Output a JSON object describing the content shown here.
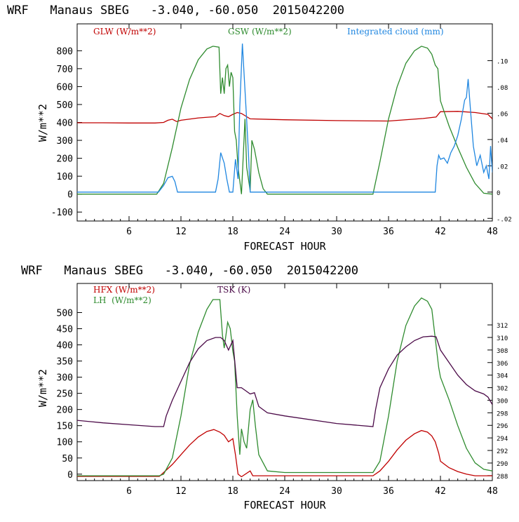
{
  "chart_data": [
    {
      "type": "line",
      "title": "WRF   Manaus SBEG   -3.040, -60.050  2015042200",
      "xlabel": "FORECAST HOUR",
      "ylabel": "W/m**2",
      "xlim": [
        0,
        48
      ],
      "ylim": [
        -150,
        950
      ],
      "xticks": [
        6,
        12,
        18,
        24,
        30,
        36,
        42,
        48
      ],
      "yticks": [
        -100,
        0,
        100,
        200,
        300,
        400,
        500,
        600,
        700,
        800
      ],
      "y2lim": [
        -0.022,
        0.128
      ],
      "y2ticks": [
        {
          "value": -0.02,
          "label": "-.02"
        },
        {
          "value": 0,
          "label": "0"
        },
        {
          "value": 0.02,
          "label": ".02"
        },
        {
          "value": 0.04,
          "label": ".04"
        },
        {
          "value": 0.06,
          "label": ".06"
        },
        {
          "value": 0.08,
          "label": ".08"
        },
        {
          "value": 0.1,
          "label": ".10"
        }
      ],
      "series": [
        {
          "name": "GLW (W/m**2)",
          "color": "#c00000",
          "axis": "left",
          "x": [
            0,
            3,
            6,
            9,
            10,
            10.5,
            11,
            11.5,
            12,
            14,
            16,
            16.5,
            17,
            17.5,
            18,
            18.5,
            19,
            20,
            24,
            30,
            36,
            40,
            41.5,
            42,
            44,
            46,
            47.5,
            48
          ],
          "y": [
            398,
            398,
            397,
            397,
            400,
            412,
            418,
            405,
            412,
            425,
            432,
            450,
            438,
            432,
            445,
            455,
            450,
            420,
            415,
            410,
            408,
            422,
            430,
            460,
            462,
            455,
            445,
            420
          ]
        },
        {
          "name": "GSW (W/m**2)",
          "color": "#2e8b2e",
          "axis": "left",
          "x": [
            0,
            9.2,
            10,
            11,
            12,
            13,
            14,
            15,
            15.7,
            16.4,
            16.6,
            16.8,
            17,
            17.2,
            17.4,
            17.6,
            17.8,
            18,
            18.2,
            18.4,
            18.6,
            19,
            19.4,
            19.6,
            20,
            20.2,
            20.5,
            21,
            21.5,
            22,
            34.2,
            35,
            36,
            37,
            38,
            39,
            39.8,
            40.5,
            41,
            41.4,
            41.7,
            42,
            43,
            44,
            45,
            46,
            47,
            48
          ],
          "y": [
            0,
            0,
            60,
            260,
            480,
            640,
            750,
            810,
            825,
            820,
            560,
            650,
            560,
            700,
            720,
            600,
            680,
            650,
            350,
            300,
            150,
            0,
            420,
            150,
            20,
            300,
            250,
            120,
            30,
            0,
            0,
            180,
            420,
            600,
            730,
            800,
            825,
            815,
            780,
            720,
            700,
            520,
            380,
            260,
            150,
            60,
            5,
            0
          ]
        },
        {
          "name": "Integrated cloud (mm)",
          "color": "#1f86e0",
          "axis": "right",
          "x": [
            0,
            9.4,
            10,
            10.5,
            11,
            11.3,
            11.6,
            16,
            16.3,
            16.6,
            17,
            17.3,
            17.6,
            18,
            18.3,
            18.6,
            18.8,
            19.1,
            19.3,
            19.6,
            19.8,
            20,
            34.2,
            41.4,
            41.6,
            41.8,
            42,
            42.4,
            42.8,
            43.2,
            43.6,
            44,
            44.4,
            44.8,
            45,
            45.2,
            45.5,
            45.8,
            46.2,
            46.6,
            47,
            47.3,
            47.6,
            47.8,
            48
          ],
          "y": [
            0,
            0,
            0.005,
            0.011,
            0.012,
            0.008,
            0,
            0,
            0.01,
            0.03,
            0.022,
            0.01,
            0,
            0,
            0.025,
            0.01,
            0.065,
            0.113,
            0.09,
            0.055,
            0.03,
            0,
            0,
            0,
            0.02,
            0.028,
            0.025,
            0.026,
            0.022,
            0.03,
            0.035,
            0.043,
            0.055,
            0.07,
            0.072,
            0.086,
            0.06,
            0.035,
            0.02,
            0.028,
            0.015,
            0.02,
            0.01,
            0.035,
            0.015
          ]
        }
      ]
    },
    {
      "type": "line",
      "title": "WRF   Manaus SBEG   -3.040, -60.050  2015042200",
      "xlabel": "FORECAST HOUR",
      "ylabel": "W/m**2",
      "xlim": [
        0,
        48
      ],
      "ylim": [
        -20,
        590
      ],
      "xticks": [
        6,
        12,
        18,
        24,
        30,
        36,
        42,
        48
      ],
      "yticks": [
        0,
        50,
        100,
        150,
        200,
        250,
        300,
        350,
        400,
        450,
        500
      ],
      "y2lim": [
        287.2,
        318.6
      ],
      "y2ticks": [
        {
          "value": 288,
          "label": "288"
        },
        {
          "value": 290,
          "label": "290"
        },
        {
          "value": 292,
          "label": "292"
        },
        {
          "value": 294,
          "label": "294"
        },
        {
          "value": 296,
          "label": "296"
        },
        {
          "value": 298,
          "label": "298"
        },
        {
          "value": 300,
          "label": "300"
        },
        {
          "value": 302,
          "label": "302"
        },
        {
          "value": 304,
          "label": "304"
        },
        {
          "value": 306,
          "label": "306"
        },
        {
          "value": 308,
          "label": "308"
        },
        {
          "value": 310,
          "label": "310"
        },
        {
          "value": 312,
          "label": "312"
        }
      ],
      "series": [
        {
          "name": "HFX (W/m**2)",
          "color": "#c00000",
          "axis": "left",
          "x": [
            0,
            9.5,
            10,
            11,
            12,
            13,
            14,
            15,
            15.8,
            16.5,
            17,
            17.5,
            18,
            18.3,
            18.6,
            19,
            20,
            20.3,
            21,
            24,
            34.2,
            35,
            36,
            37,
            38,
            39,
            39.8,
            40.5,
            41,
            41.4,
            41.8,
            42,
            43,
            44,
            45,
            46,
            47,
            48
          ],
          "y": [
            -7,
            -7,
            5,
            30,
            60,
            90,
            115,
            132,
            138,
            130,
            120,
            100,
            110,
            60,
            0,
            -8,
            10,
            -5,
            -5,
            -5,
            -5,
            10,
            40,
            75,
            105,
            125,
            135,
            130,
            118,
            100,
            65,
            40,
            20,
            8,
            0,
            -5,
            -5,
            -5
          ]
        },
        {
          "name": "LH  (W/m**2)",
          "color": "#2e8b2e",
          "axis": "left",
          "x": [
            0,
            9.5,
            10,
            11,
            12,
            13,
            14,
            15,
            15.7,
            16.5,
            16.8,
            17,
            17.4,
            17.7,
            18,
            18.2,
            18.5,
            18.8,
            19,
            19.3,
            19.6,
            20,
            20.3,
            20.6,
            21,
            22,
            24,
            34.2,
            35,
            36,
            37,
            38,
            39,
            39.8,
            40.5,
            41,
            41.4,
            41.8,
            42,
            43,
            44,
            45,
            46,
            47,
            48
          ],
          "y": [
            -5,
            -5,
            0,
            50,
            180,
            340,
            440,
            510,
            540,
            540,
            430,
            390,
            470,
            450,
            380,
            350,
            180,
            60,
            140,
            100,
            80,
            200,
            230,
            150,
            60,
            10,
            5,
            5,
            40,
            180,
            350,
            460,
            520,
            545,
            535,
            510,
            420,
            330,
            300,
            230,
            150,
            80,
            35,
            15,
            10
          ]
        },
        {
          "name": "TSK (K)",
          "color": "#4b0a48",
          "axis": "right",
          "x": [
            0,
            3,
            6,
            9,
            10,
            10.3,
            11,
            12,
            13,
            14,
            15,
            16,
            16.6,
            17,
            17.5,
            18,
            18.5,
            19,
            19.5,
            20,
            20.5,
            21,
            22,
            24,
            30,
            34.2,
            34.5,
            35,
            36,
            37,
            38,
            39,
            40,
            41,
            41.5,
            42,
            43,
            44,
            45,
            46,
            47,
            47.5,
            48
          ],
          "y": [
            296.8,
            296.4,
            296.1,
            295.8,
            295.8,
            297.5,
            300,
            303,
            306,
            308.2,
            309.5,
            310,
            310,
            309.5,
            308,
            309.5,
            302,
            302,
            301.5,
            301,
            301.2,
            299,
            298,
            297.5,
            296.3,
            295.8,
            298.5,
            302,
            305,
            307.2,
            308.5,
            309.5,
            310.1,
            310.2,
            310.1,
            308,
            306,
            304,
            302.5,
            301.5,
            301,
            300.5,
            299.3
          ]
        }
      ]
    }
  ]
}
